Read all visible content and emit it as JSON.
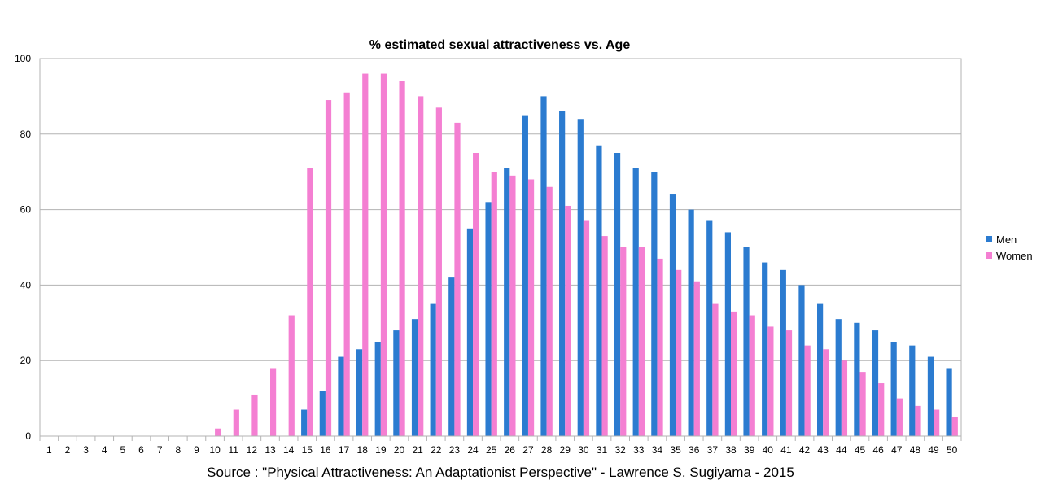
{
  "source_note": "Source :  \"Physical Attractiveness: An Adaptationist Perspective\" - Lawrence S. Sugiyama - 2015",
  "chart_data": {
    "type": "bar",
    "title": "% estimated sexual attractiveness vs. Age",
    "xlabel": "",
    "ylabel": "",
    "ylim": [
      0,
      100
    ],
    "yticks": [
      0,
      20,
      40,
      60,
      80,
      100
    ],
    "grid": true,
    "legend_position": "right",
    "categories": [
      "1",
      "2",
      "3",
      "4",
      "5",
      "6",
      "7",
      "8",
      "9",
      "10",
      "11",
      "12",
      "13",
      "14",
      "15",
      "16",
      "17",
      "18",
      "19",
      "20",
      "21",
      "22",
      "23",
      "24",
      "25",
      "26",
      "27",
      "28",
      "29",
      "30",
      "31",
      "32",
      "33",
      "34",
      "35",
      "36",
      "37",
      "38",
      "39",
      "40",
      "41",
      "42",
      "43",
      "44",
      "45",
      "46",
      "47",
      "48",
      "49",
      "50"
    ],
    "series": [
      {
        "name": "Men",
        "color": "#2b7bd0",
        "values": [
          0,
          0,
          0,
          0,
          0,
          0,
          0,
          0,
          0,
          0,
          0,
          0,
          0,
          0,
          7,
          12,
          21,
          23,
          25,
          28,
          31,
          35,
          42,
          55,
          62,
          71,
          85,
          90,
          86,
          84,
          77,
          75,
          71,
          70,
          64,
          60,
          57,
          54,
          50,
          46,
          44,
          40,
          35,
          31,
          30,
          28,
          25,
          24,
          21,
          18
        ]
      },
      {
        "name": "Women",
        "color": "#f47fd2",
        "values": [
          0,
          0,
          0,
          0,
          0,
          0,
          0,
          0,
          0,
          2,
          7,
          11,
          18,
          32,
          71,
          89,
          91,
          96,
          96,
          94,
          90,
          87,
          83,
          75,
          70,
          69,
          68,
          66,
          61,
          57,
          53,
          50,
          50,
          47,
          44,
          41,
          35,
          33,
          32,
          29,
          28,
          24,
          23,
          20,
          17,
          14,
          10,
          8,
          7,
          5
        ]
      }
    ]
  }
}
